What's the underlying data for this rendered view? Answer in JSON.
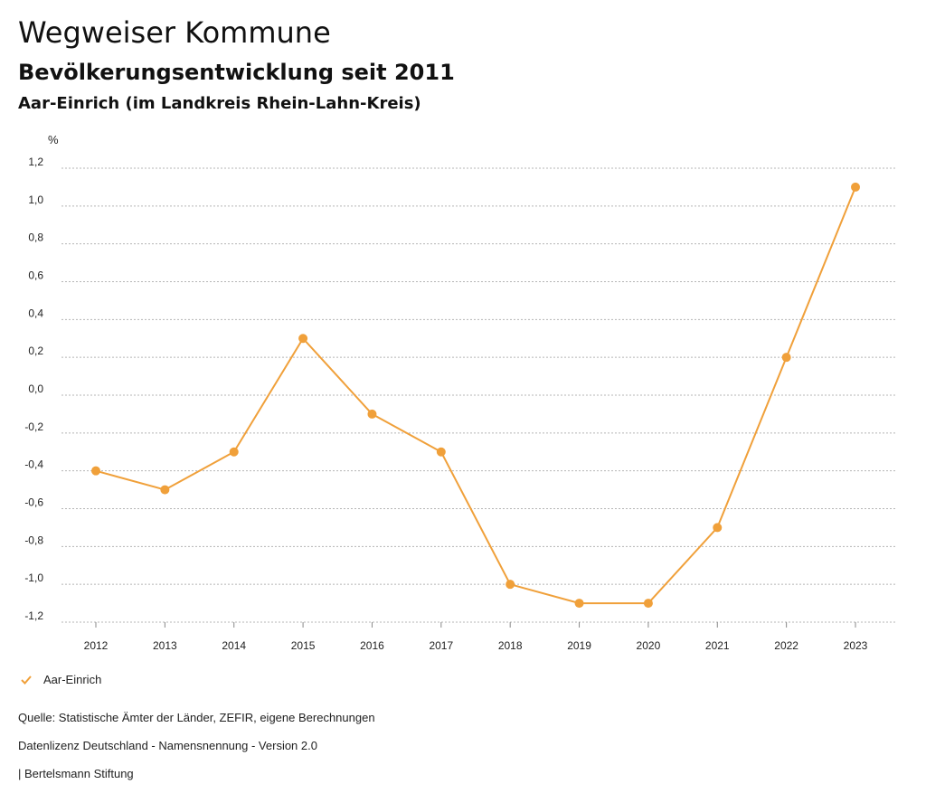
{
  "header": {
    "title": "Wegweiser Kommune",
    "subtitle": "Bevölkerungsentwicklung seit 2011",
    "region": "Aar-Einrich (im Landkreis Rhein-Lahn-Kreis)"
  },
  "chart_data": {
    "type": "line",
    "title": "Bevölkerungsentwicklung seit 2011",
    "ylabel": "%",
    "xlabel": "",
    "categories": [
      "2012",
      "2013",
      "2014",
      "2015",
      "2016",
      "2017",
      "2018",
      "2019",
      "2020",
      "2021",
      "2022",
      "2023"
    ],
    "series": [
      {
        "name": "Aar-Einrich",
        "color": "#f0a03a",
        "values": [
          -0.4,
          -0.5,
          -0.3,
          0.3,
          -0.1,
          -0.3,
          -1.0,
          -1.1,
          -1.1,
          -0.7,
          0.2,
          1.1
        ]
      }
    ],
    "ylim": [
      -1.2,
      1.2
    ],
    "yticks": [
      "-1,2",
      "-1,0",
      "-0,8",
      "-0,6",
      "-0,4",
      "-0,2",
      "0,0",
      "0,2",
      "0,4",
      "0,6",
      "0,8",
      "1,0",
      "1,2"
    ],
    "grid": true,
    "legend": "bottom-left"
  },
  "legend": {
    "label": "Aar-Einrich"
  },
  "footer": {
    "source": "Quelle: Statistische Ämter der Länder, ZEFIR, eigene Berechnungen",
    "license": "Datenlizenz Deutschland - Namensnennung - Version 2.0",
    "publisher": "| Bertelsmann Stiftung"
  }
}
